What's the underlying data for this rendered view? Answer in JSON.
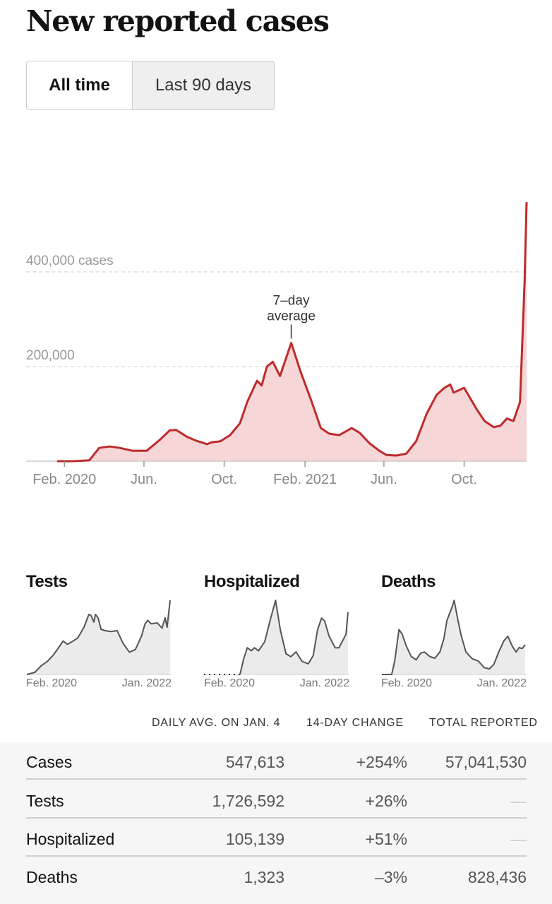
{
  "title": "New reported cases",
  "toggle": {
    "all_time": "All time",
    "last_90": "Last 90 days"
  },
  "colors": {
    "line": "#bf2b2b",
    "fill": "#f6d6d7",
    "grid": "#dddddd",
    "small_line": "#555555",
    "small_fill": "#ebebeb"
  },
  "chart_data": [
    {
      "type": "area",
      "title": "New reported cases",
      "y_tick_labels": [
        "400,000 cases",
        "200,000"
      ],
      "y_ticks": [
        400000,
        200000
      ],
      "ylim": [
        0,
        560000
      ],
      "x_tick_labels": [
        "Feb. 2020",
        "Jun.",
        "Oct.",
        "Feb. 2021",
        "Jun.",
        "Oct."
      ],
      "x_ticks": [
        "2020-02-01",
        "2020-06-01",
        "2020-10-01",
        "2021-02-01",
        "2021-06-01",
        "2021-10-01"
      ],
      "xlim": [
        "2020-01-21",
        "2022-01-04"
      ],
      "annotation": {
        "text": [
          "7–day",
          "average"
        ],
        "date": "2021-01-11",
        "value": 250000
      },
      "series": [
        {
          "x": [
            "2020-01-21",
            "2020-02-15",
            "2020-03-10",
            "2020-03-25",
            "2020-04-10",
            "2020-04-25",
            "2020-05-15",
            "2020-06-05",
            "2020-06-25",
            "2020-07-10",
            "2020-07-20",
            "2020-08-05",
            "2020-08-20",
            "2020-09-05",
            "2020-09-12",
            "2020-09-25",
            "2020-10-10",
            "2020-10-25",
            "2020-11-05",
            "2020-11-20",
            "2020-11-27",
            "2020-12-05",
            "2020-12-14",
            "2020-12-25",
            "2021-01-11",
            "2021-01-25",
            "2021-02-10",
            "2021-02-25",
            "2021-03-10",
            "2021-03-25",
            "2021-04-13",
            "2021-04-25",
            "2021-05-10",
            "2021-05-25",
            "2021-06-05",
            "2021-06-20",
            "2021-07-05",
            "2021-07-20",
            "2021-08-05",
            "2021-08-20",
            "2021-09-01",
            "2021-09-10",
            "2021-09-15",
            "2021-10-01",
            "2021-10-20",
            "2021-11-01",
            "2021-11-15",
            "2021-11-25",
            "2021-12-05",
            "2021-12-15",
            "2021-12-25",
            "2022-01-01",
            "2022-01-04"
          ],
          "y": [
            0,
            0,
            2000,
            28000,
            31000,
            28000,
            22000,
            22000,
            45000,
            65000,
            66000,
            52000,
            43000,
            36000,
            40000,
            42000,
            55000,
            80000,
            125000,
            170000,
            160000,
            200000,
            210000,
            180000,
            250000,
            190000,
            130000,
            70000,
            58000,
            55000,
            70000,
            60000,
            38000,
            22000,
            13000,
            12000,
            16000,
            42000,
            100000,
            140000,
            155000,
            162000,
            145000,
            155000,
            110000,
            85000,
            72000,
            75000,
            90000,
            85000,
            125000,
            380000,
            547613
          ]
        }
      ]
    },
    {
      "type": "area",
      "title": "Tests",
      "x_tick_labels": [
        "Feb. 2020",
        "Jan. 2022"
      ],
      "series": [
        {
          "x": [
            "2020-01-21",
            "2020-03-01",
            "2020-04-01",
            "2020-05-01",
            "2020-06-01",
            "2020-07-01",
            "2020-07-20",
            "2020-08-10",
            "2020-09-01",
            "2020-10-01",
            "2020-11-01",
            "2020-11-25",
            "2020-12-05",
            "2020-12-20",
            "2020-12-28",
            "2021-01-10",
            "2021-01-25",
            "2021-02-15",
            "2021-03-15",
            "2021-04-15",
            "2021-05-15",
            "2021-06-15",
            "2021-07-15",
            "2021-08-15",
            "2021-09-01",
            "2021-09-15",
            "2021-10-01",
            "2021-11-01",
            "2021-11-25",
            "2021-12-10",
            "2021-12-20",
            "2022-01-04"
          ],
          "y": [
            0,
            50000,
            200000,
            300000,
            450000,
            650000,
            780000,
            700000,
            760000,
            850000,
            1100000,
            1400000,
            1380000,
            1220000,
            1400000,
            1320000,
            1050000,
            1020000,
            1000000,
            1020000,
            720000,
            520000,
            580000,
            900000,
            1180000,
            1260000,
            1180000,
            1200000,
            1080000,
            1320000,
            1100000,
            1726592
          ]
        }
      ]
    },
    {
      "type": "area",
      "title": "Hospitalized",
      "x_tick_labels": [
        "Feb. 2020",
        "Jan. 2022"
      ],
      "series": [
        {
          "x": [
            "2020-07-15",
            "2020-08-01",
            "2020-08-20",
            "2020-09-10",
            "2020-09-25",
            "2020-10-15",
            "2020-11-15",
            "2020-12-15",
            "2021-01-08",
            "2021-02-01",
            "2021-03-01",
            "2021-03-25",
            "2021-04-20",
            "2021-05-20",
            "2021-06-20",
            "2021-07-15",
            "2021-08-05",
            "2021-08-25",
            "2021-09-10",
            "2021-10-01",
            "2021-11-01",
            "2021-11-20",
            "2021-12-10",
            "2021-12-25",
            "2022-01-04"
          ],
          "y": [
            0,
            25000,
            45000,
            40000,
            45000,
            40000,
            55000,
            95000,
            125000,
            75000,
            35000,
            30000,
            38000,
            22000,
            18000,
            32000,
            75000,
            95000,
            90000,
            65000,
            45000,
            45000,
            58000,
            68000,
            105139
          ]
        }
      ]
    },
    {
      "type": "area",
      "title": "Deaths",
      "x_tick_labels": [
        "Feb. 2020",
        "Jan. 2022"
      ],
      "series": [
        {
          "x": [
            "2020-01-21",
            "2020-03-10",
            "2020-03-25",
            "2020-04-15",
            "2020-05-01",
            "2020-05-20",
            "2020-06-15",
            "2020-07-10",
            "2020-08-01",
            "2020-08-20",
            "2020-09-15",
            "2020-10-10",
            "2020-11-05",
            "2020-11-25",
            "2020-12-10",
            "2021-01-05",
            "2021-01-15",
            "2021-02-01",
            "2021-02-20",
            "2021-03-15",
            "2021-04-15",
            "2021-05-15",
            "2021-06-15",
            "2021-07-10",
            "2021-08-01",
            "2021-08-25",
            "2021-09-20",
            "2021-10-10",
            "2021-11-01",
            "2021-11-20",
            "2021-12-05",
            "2021-12-20",
            "2022-01-04"
          ],
          "y": [
            0,
            0,
            600,
            2000,
            1800,
            1300,
            800,
            650,
            950,
            1000,
            800,
            720,
            1000,
            1600,
            2400,
            3000,
            3300,
            2500,
            1700,
            1000,
            700,
            600,
            300,
            250,
            450,
            1000,
            1500,
            1700,
            1250,
            1000,
            1200,
            1150,
            1323
          ]
        }
      ]
    }
  ],
  "small_titles": {
    "tests": "Tests",
    "hospitalized": "Hospitalized",
    "deaths": "Deaths"
  },
  "stats": {
    "headers": {
      "daily": "DAILY AVG. ON JAN. 4",
      "change": "14-DAY CHANGE",
      "total": "TOTAL REPORTED"
    },
    "rows": [
      {
        "label": "Cases",
        "daily": "547,613",
        "change": "+254%",
        "total": "57,041,530"
      },
      {
        "label": "Tests",
        "daily": "1,726,592",
        "change": "+26%",
        "total": "—"
      },
      {
        "label": "Hospitalized",
        "daily": "105,139",
        "change": "+51%",
        "total": "—"
      },
      {
        "label": "Deaths",
        "daily": "1,323",
        "change": "–3%",
        "total": "828,436"
      }
    ]
  }
}
